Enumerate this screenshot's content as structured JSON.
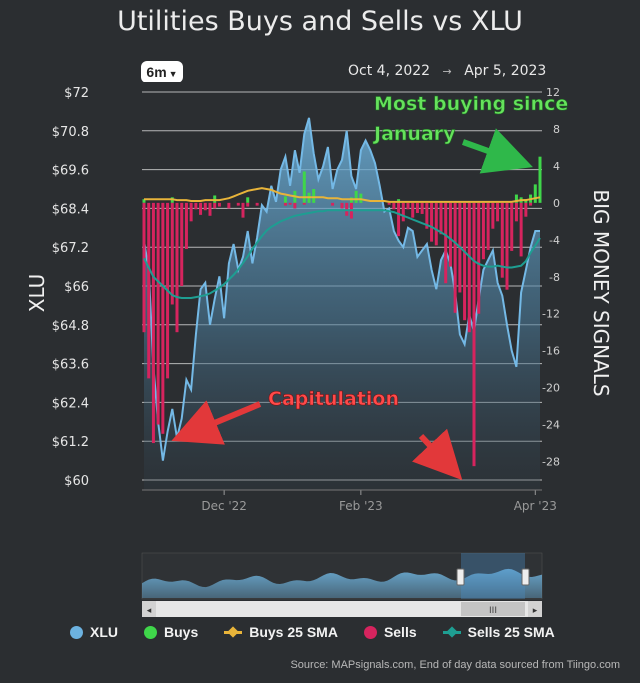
{
  "title": "Utilities Buys and Sells vs XLU",
  "range_button": "6m",
  "date_range": {
    "start": "Oct 4, 2022",
    "arrow": "→",
    "end": "Apr 5, 2023"
  },
  "legend": [
    {
      "label": "XLU",
      "color": "#6cb2e0",
      "kind": "dot"
    },
    {
      "label": "Buys",
      "color": "#3fd64a",
      "kind": "dot"
    },
    {
      "label": "Buys 25 SMA",
      "color": "#e8b43a",
      "kind": "line"
    },
    {
      "label": "Sells",
      "color": "#d6245e",
      "kind": "dot"
    },
    {
      "label": "Sells 25 SMA",
      "color": "#1e9e92",
      "kind": "line"
    }
  ],
  "source": "Source: MAPsignals.com, End of day data sourced from Tiingo.com",
  "annotations": {
    "buying": [
      "Most buying since",
      "January"
    ],
    "capitulation": "Capitulation"
  },
  "navigator": {
    "handle_grip": "III"
  },
  "chart_data": {
    "type": "line",
    "title": "Utilities Buys and Sells vs XLU",
    "ylabel": "XLU",
    "y2label": "BIG MONEY SIGNALS",
    "ylim": [
      60,
      72
    ],
    "y2lim": [
      -30,
      12
    ],
    "yticks": [
      "$72",
      "$70.8",
      "$69.6",
      "$68.4",
      "$67.2",
      "$66",
      "$64.8",
      "$63.6",
      "$62.4",
      "$61.2",
      "$60"
    ],
    "y2ticks": [
      "12",
      "8",
      "4",
      "0",
      "-4",
      "-8",
      "-12",
      "-16",
      "-20",
      "-24",
      "-28"
    ],
    "xticks": [
      "Dec '22",
      "Feb '23",
      "Apr '23"
    ],
    "xlu": [
      67.4,
      66.5,
      63.5,
      61.8,
      60.6,
      61.5,
      62.2,
      61.3,
      61.9,
      63.1,
      62.8,
      64.5,
      65.9,
      66.1,
      64.8,
      65.6,
      66.3,
      65.0,
      66.7,
      67.3,
      66.5,
      66.9,
      67.7,
      66.7,
      67.5,
      68.5,
      68.3,
      69.1,
      68.6,
      69.6,
      70.0,
      69.1,
      70.2,
      69.5,
      70.7,
      71.2,
      70.1,
      69.3,
      69.7,
      70.3,
      69.0,
      69.6,
      69.9,
      70.8,
      69.4,
      69.0,
      70.2,
      70.5,
      70.2,
      69.8,
      69.1,
      68.3,
      68.4,
      67.7,
      67.4,
      67.2,
      67.8,
      67.7,
      66.9,
      67.1,
      67.3,
      66.5,
      65.9,
      66.8,
      67.1,
      66.7,
      65.8,
      64.5,
      64.2,
      65.1,
      64.6,
      65.6,
      66.5,
      66.8,
      67.1,
      66.1,
      65.7,
      64.8,
      64.0,
      63.5,
      65.8,
      66.5,
      67.2,
      67.7,
      67.7
    ],
    "buys": [
      0.4,
      0,
      0,
      0,
      0,
      0,
      0.6,
      0,
      0,
      0,
      0,
      0,
      0,
      0,
      0,
      0.8,
      0,
      0,
      0,
      0,
      0,
      0,
      0.6,
      0,
      0,
      0,
      0,
      0,
      0,
      0,
      0.7,
      0,
      1.3,
      0,
      3.4,
      1.1,
      1.5,
      0,
      0,
      0,
      0,
      0,
      0,
      0,
      0.6,
      1.3,
      1.0,
      0,
      0,
      0,
      0,
      0,
      0,
      0,
      0.4,
      0,
      0,
      0,
      0,
      0,
      0,
      0,
      0,
      0,
      0,
      0,
      0,
      0,
      0,
      0,
      0,
      0,
      0,
      0,
      0,
      0,
      0,
      0,
      0,
      0.9,
      0.6,
      0.4,
      0.9,
      2.0,
      5.0
    ],
    "sells": [
      -14,
      -19,
      -26,
      -24,
      -25,
      -19,
      -11,
      -14,
      -9,
      -5,
      -2,
      -0.7,
      -1.3,
      -0.8,
      -1.4,
      -0.6,
      -0.4,
      0,
      -0.6,
      0,
      -0.3,
      -1.6,
      -0.4,
      0,
      -0.3,
      0,
      0,
      0,
      0,
      0,
      -0.3,
      -0.2,
      -0.6,
      0,
      -0.2,
      0,
      0,
      0,
      0,
      0,
      -0.3,
      0,
      -0.6,
      -1.4,
      -1.7,
      0,
      0,
      0,
      0,
      0,
      0,
      0,
      -0.2,
      -0.7,
      -3.6,
      -2.0,
      -0.7,
      -1.6,
      -1.1,
      -1.2,
      -2.8,
      -4.2,
      -4.6,
      -3.4,
      -8.7,
      -6.9,
      -11.9,
      -9.7,
      -12.7,
      -14.0,
      -28.5,
      -12.0,
      -6.1,
      -5.1,
      -2.8,
      -2.0,
      -8.1,
      -9.4,
      -5.2,
      -2.0,
      -5.8,
      -1.5,
      -0.3,
      0,
      0
    ],
    "buys_sma": [
      0.4,
      0.4,
      0.4,
      0.4,
      0.4,
      0.4,
      0.4,
      0.3,
      0.3,
      0.3,
      0.2,
      0.2,
      0.2,
      0.3,
      0.3,
      0.3,
      0.3,
      0.4,
      0.5,
      0.7,
      0.9,
      1.1,
      1.3,
      1.4,
      1.5,
      1.6,
      1.5,
      1.4,
      1.2,
      1.0,
      0.9,
      0.8,
      0.7,
      0.6,
      0.6,
      0.6,
      0.6,
      0.6,
      0.6,
      0.5,
      0.5,
      0.5,
      0.4,
      0.4,
      0.4,
      0.4,
      0.4,
      0.3,
      0.2,
      0.2,
      0.2,
      0.2,
      0.1,
      0.1,
      0.1,
      0.1,
      0.1,
      0.1,
      0.1,
      0.1,
      0.1,
      0.1,
      0.1,
      0.1,
      0.1,
      0.1,
      0.1,
      0.1,
      0.1,
      0.1,
      0.1,
      0.1,
      0.1,
      0.1,
      0.1,
      0.1,
      0.1,
      0.1,
      0.1,
      0.2,
      0.3,
      0.3,
      0.4,
      0.5,
      0.6
    ],
    "sells_sma": [
      -6,
      -7,
      -8,
      -8.5,
      -9,
      -9.5,
      -10,
      -10.2,
      -10.3,
      -10.3,
      -10.3,
      -10.2,
      -10.1,
      -10.0,
      -9.8,
      -9.5,
      -9.2,
      -8.8,
      -8.3,
      -7.8,
      -7.2,
      -6.5,
      -5.8,
      -5.0,
      -4.3,
      -3.6,
      -3.0,
      -2.6,
      -2.3,
      -2.0,
      -1.8,
      -1.6,
      -1.4,
      -1.3,
      -1.2,
      -1.1,
      -1.0,
      -0.9,
      -0.9,
      -0.8,
      -0.8,
      -0.8,
      -0.8,
      -0.8,
      -0.8,
      -0.8,
      -0.8,
      -0.8,
      -0.8,
      -0.8,
      -0.8,
      -0.8,
      -0.9,
      -1.0,
      -1.2,
      -1.4,
      -1.6,
      -1.8,
      -2.0,
      -2.2,
      -2.4,
      -2.6,
      -2.9,
      -3.2,
      -3.5,
      -3.9,
      -4.3,
      -4.8,
      -5.3,
      -5.8,
      -6.3,
      -6.6,
      -6.8,
      -6.9,
      -6.9,
      -6.8,
      -6.9,
      -7.0,
      -7.0,
      -6.9,
      -6.8,
      -6.3,
      -5.4,
      -4.6,
      -3.8
    ]
  }
}
